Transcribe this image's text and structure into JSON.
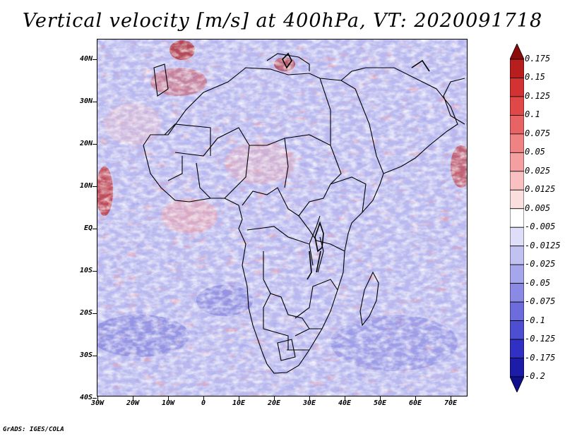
{
  "title": "Vertical velocity [m/s] at 400hPa, VT: 2020091718",
  "credit": "GrADS: IGES/COLA",
  "map": {
    "lat_labels": [
      "40N",
      "30N",
      "20N",
      "10N",
      "EQ",
      "10S",
      "20S",
      "30S",
      "40S"
    ],
    "lon_labels": [
      "30W",
      "20W",
      "10W",
      "0",
      "10E",
      "20E",
      "30E",
      "40E",
      "50E",
      "60E",
      "70E"
    ]
  },
  "colorbar": {
    "labels": [
      "0.175",
      "0.15",
      "0.125",
      "0.1",
      "0.075",
      "0.05",
      "0.025",
      "0.0125",
      "0.005",
      "-0.005",
      "-0.0125",
      "-0.025",
      "-0.05",
      "-0.075",
      "-0.1",
      "-0.125",
      "-0.175",
      "-0.2"
    ],
    "colors": [
      "#8c0a0a",
      "#b81e1e",
      "#d23232",
      "#e04848",
      "#e86464",
      "#ef8282",
      "#f4a0a0",
      "#f8c0c0",
      "#fbdede",
      "#ffffff",
      "#dedef8",
      "#c2c2f2",
      "#a6a6ec",
      "#8a8ae4",
      "#6c6cdc",
      "#4e4ed2",
      "#3030c4",
      "#1c1ca8",
      "#10108c"
    ]
  }
}
